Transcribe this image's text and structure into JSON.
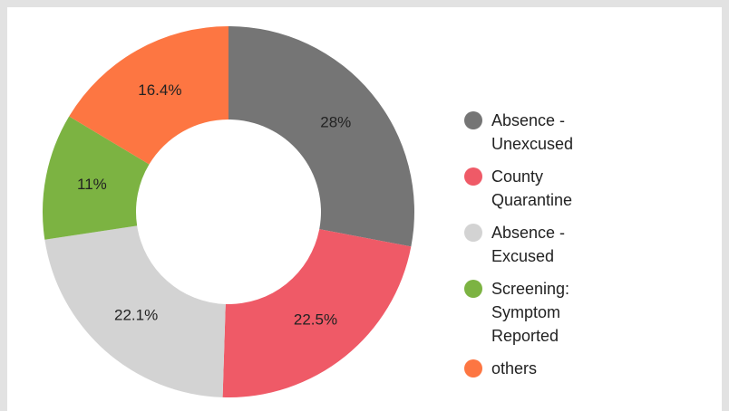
{
  "chart_data": {
    "type": "donut",
    "categories": [
      "Absence - Unexcused",
      "County Quarantine",
      "Absence - Excused",
      "Screening: Symptom Reported",
      "others"
    ],
    "values": [
      28,
      22.5,
      22.1,
      11,
      16.4
    ],
    "value_labels": [
      "28%",
      "22.5%",
      "22.1%",
      "11%",
      "16.4%"
    ],
    "colors": [
      "#757575",
      "#ef5a67",
      "#d3d3d3",
      "#7cb342",
      "#fd7642"
    ],
    "legend": "right"
  }
}
